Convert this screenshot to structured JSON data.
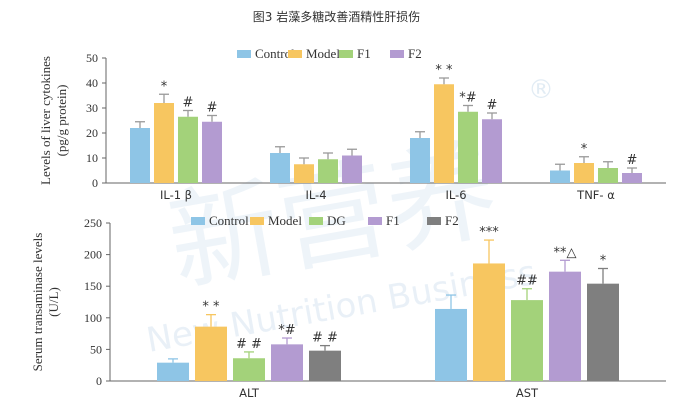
{
  "figure_title": "图3 岩藻多糖改善酒精性肝损伤",
  "watermark": "新营养 New Nutrition Business ®",
  "chart_data": [
    {
      "type": "bar",
      "ylabel": "Levels of liver cytokines (pg/g protein)",
      "ylim": [
        0,
        50
      ],
      "yticks": [
        0,
        10,
        20,
        30,
        40,
        50
      ],
      "categories": [
        "IL-1 β",
        "IL-4",
        "IL-6",
        "TNF- α"
      ],
      "legend_position": "top",
      "series": [
        {
          "name": "Control",
          "color": "#8ec5e6",
          "values": [
            22,
            12,
            18,
            5
          ],
          "errors": [
            2.5,
            2.5,
            2.5,
            2.5
          ],
          "annotations": [
            "",
            "",
            "",
            ""
          ]
        },
        {
          "name": "Model",
          "color": "#f7c660",
          "values": [
            32,
            7.5,
            39.5,
            8
          ],
          "errors": [
            3.5,
            2.5,
            2.5,
            2.5
          ],
          "annotations": [
            "*",
            "",
            "* *",
            "*"
          ]
        },
        {
          "name": "F1",
          "color": "#a3d27a",
          "values": [
            26.5,
            9.5,
            28.5,
            6
          ],
          "errors": [
            2.5,
            2.5,
            2.5,
            2.5
          ],
          "annotations": [
            "#",
            "",
            "*#",
            ""
          ]
        },
        {
          "name": "F2",
          "color": "#b39bd1",
          "values": [
            24.5,
            11,
            25.5,
            4
          ],
          "errors": [
            2.5,
            2.5,
            2.5,
            2
          ],
          "annotations": [
            "#",
            "",
            "#",
            "#"
          ]
        }
      ]
    },
    {
      "type": "bar",
      "ylabel": "Serum transaminase levels (U/L)",
      "ylim": [
        0,
        250
      ],
      "yticks": [
        0,
        50,
        100,
        150,
        200,
        250
      ],
      "categories": [
        "ALT",
        "AST"
      ],
      "legend_position": "top",
      "series": [
        {
          "name": "Control",
          "color": "#8ec5e6",
          "values": [
            29,
            114
          ],
          "errors": [
            6,
            22
          ],
          "annotations": [
            "",
            ""
          ]
        },
        {
          "name": "Model",
          "color": "#f7c660",
          "values": [
            86,
            186
          ],
          "errors": [
            19,
            37
          ],
          "annotations": [
            "* *",
            "***"
          ]
        },
        {
          "name": "DG",
          "color": "#a3d27a",
          "values": [
            36,
            128
          ],
          "errors": [
            10,
            18
          ],
          "annotations": [
            "# #",
            "##"
          ]
        },
        {
          "name": "F1",
          "color": "#b39bd1",
          "values": [
            58,
            173
          ],
          "errors": [
            10,
            18
          ],
          "annotations": [
            "*#",
            "**△"
          ]
        },
        {
          "name": "F2",
          "color": "#7f7f7f",
          "values": [
            48,
            154
          ],
          "errors": [
            8,
            24
          ],
          "annotations": [
            "# #",
            "*"
          ]
        }
      ]
    }
  ]
}
